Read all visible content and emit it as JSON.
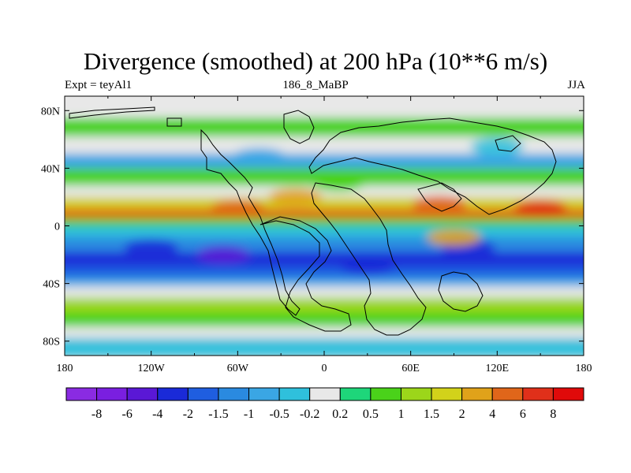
{
  "chart_data": {
    "type": "heatmap",
    "title": "Divergence (smoothed) at 200 hPa (10**6 m/s)",
    "subtitle_left": "Expt = teyAl1",
    "subtitle_center": "186_8_MaBP",
    "subtitle_right": "JJA",
    "x_axis": {
      "range": [
        -180,
        180
      ],
      "ticks": [
        {
          "value": -180,
          "label": "180"
        },
        {
          "value": -120,
          "label": "120W"
        },
        {
          "value": -60,
          "label": "60W"
        },
        {
          "value": 0,
          "label": "0"
        },
        {
          "value": 60,
          "label": "60E"
        },
        {
          "value": 120,
          "label": "120E"
        },
        {
          "value": 180,
          "label": "180"
        }
      ]
    },
    "y_axis": {
      "range": [
        -90,
        90
      ],
      "ticks": [
        {
          "value": 80,
          "label": "80N"
        },
        {
          "value": 40,
          "label": "40N"
        },
        {
          "value": 0,
          "label": "0"
        },
        {
          "value": -40,
          "label": "40S"
        },
        {
          "value": -80,
          "label": "80S"
        }
      ]
    },
    "colorbar": {
      "labels": [
        "-8",
        "-6",
        "-4",
        "-2",
        "-1.5",
        "-1",
        "-0.5",
        "-0.2",
        "0.2",
        "0.5",
        "1",
        "1.5",
        "2",
        "4",
        "6",
        "8"
      ],
      "colors": [
        "#8a2be2",
        "#7a1fe0",
        "#5a18d6",
        "#1a2ad8",
        "#1f5ee0",
        "#2a8ae0",
        "#3aa6e4",
        "#2fc0dc",
        "#e8e8e8",
        "#1ed67a",
        "#4ad21a",
        "#9cd61a",
        "#d2d21a",
        "#e0a21a",
        "#e0661a",
        "#e0301a",
        "#e00a0a"
      ]
    },
    "field": {
      "units": "10**6 m/s",
      "bands": [
        {
          "lat": 88,
          "value": 0.1
        },
        {
          "lat": 75,
          "value": 0.7
        },
        {
          "lat": 62,
          "value": 0.1
        },
        {
          "lat": 50,
          "value": -0.6
        },
        {
          "lat": 40,
          "value": 0.8
        },
        {
          "lat": 28,
          "value": 0.1
        },
        {
          "lat": 20,
          "value": 1.6
        },
        {
          "lat": 12,
          "value": 4.5
        },
        {
          "lat": 5,
          "value": 0.6
        },
        {
          "lat": 0,
          "value": -0.3
        },
        {
          "lat": -8,
          "value": -1.2
        },
        {
          "lat": -18,
          "value": -2.6
        },
        {
          "lat": -28,
          "value": -2.0
        },
        {
          "lat": -36,
          "value": -0.8
        },
        {
          "lat": -42,
          "value": 0.1
        },
        {
          "lat": -50,
          "value": 1.2
        },
        {
          "lat": -60,
          "value": 0.6
        },
        {
          "lat": -70,
          "value": 0.1
        },
        {
          "lat": -78,
          "value": -0.4
        },
        {
          "lat": -90,
          "value": 0.0
        }
      ],
      "blobs": [
        {
          "lon": -70,
          "lat": -20,
          "value": -4.5
        },
        {
          "lon": 30,
          "lat": -28,
          "value": -3.5
        },
        {
          "lon": 100,
          "lat": -15,
          "value": -3.0
        },
        {
          "lon": -120,
          "lat": -15,
          "value": -2.5
        },
        {
          "lon": 90,
          "lat": -8,
          "value": 3.5
        },
        {
          "lon": 150,
          "lat": 12,
          "value": 6.0
        },
        {
          "lon": 80,
          "lat": 15,
          "value": 4.0
        },
        {
          "lon": -60,
          "lat": 12,
          "value": 5.0
        },
        {
          "lon": -20,
          "lat": 20,
          "value": 3.0
        },
        {
          "lon": 10,
          "lat": 30,
          "value": 0.9
        },
        {
          "lon": -45,
          "lat": 48,
          "value": -1.0
        },
        {
          "lon": 120,
          "lat": 55,
          "value": -0.5
        }
      ]
    }
  }
}
